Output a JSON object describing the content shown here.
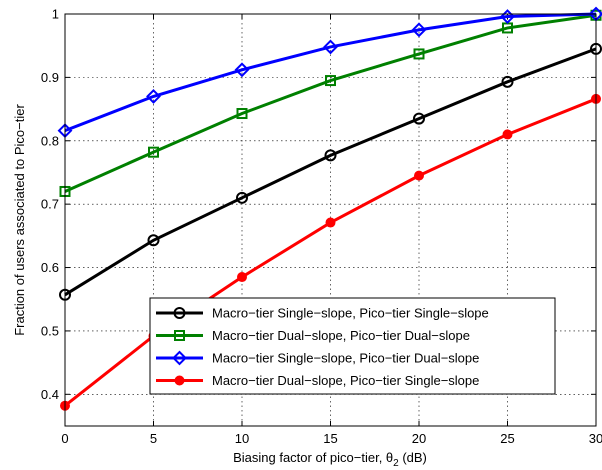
{
  "chart_data": {
    "type": "line",
    "xlabel": "Biasing factor of pico−tier, θ",
    "xlabel_sub": "2",
    "xlabel_suffix": " (dB)",
    "ylabel": "Fraction of users associated to Pico−tier",
    "xlim": [
      0,
      30
    ],
    "ylim": [
      0.35,
      1
    ],
    "xticks": [
      0,
      5,
      10,
      15,
      20,
      25,
      30
    ],
    "yticks": [
      0.4,
      0.5,
      0.6,
      0.7,
      0.8,
      0.9,
      1
    ],
    "xtick_labels": [
      "0",
      "5",
      "10",
      "15",
      "20",
      "25",
      "30"
    ],
    "ytick_labels": [
      "0.4",
      "0.5",
      "0.6",
      "0.7",
      "0.8",
      "0.9",
      "1"
    ],
    "grid": true,
    "legend_position": "lower-right",
    "x": [
      0,
      5,
      10,
      15,
      20,
      25,
      30
    ],
    "series": [
      {
        "name": "Macro−tier Single−slope, Pico−tier Single−slope",
        "color": "#000000",
        "marker": "circle",
        "values": [
          0.557,
          0.643,
          0.71,
          0.777,
          0.835,
          0.893,
          0.945
        ]
      },
      {
        "name": "Macro−tier Dual−slope, Pico−tier Dual−slope",
        "color": "#008000",
        "marker": "square",
        "values": [
          0.72,
          0.782,
          0.843,
          0.895,
          0.937,
          0.978,
          0.998
        ]
      },
      {
        "name": "Macro−tier Single−slope, Pico−tier Dual−slope",
        "color": "#0000ff",
        "marker": "diamond",
        "values": [
          0.816,
          0.87,
          0.912,
          0.948,
          0.975,
          0.996,
          1.0
        ]
      },
      {
        "name": "Macro−tier Dual−slope, Pico−tier Single−slope",
        "color": "#ff0000",
        "marker": "dot",
        "values": [
          0.382,
          0.492,
          0.585,
          0.671,
          0.745,
          0.81,
          0.866
        ]
      }
    ]
  }
}
